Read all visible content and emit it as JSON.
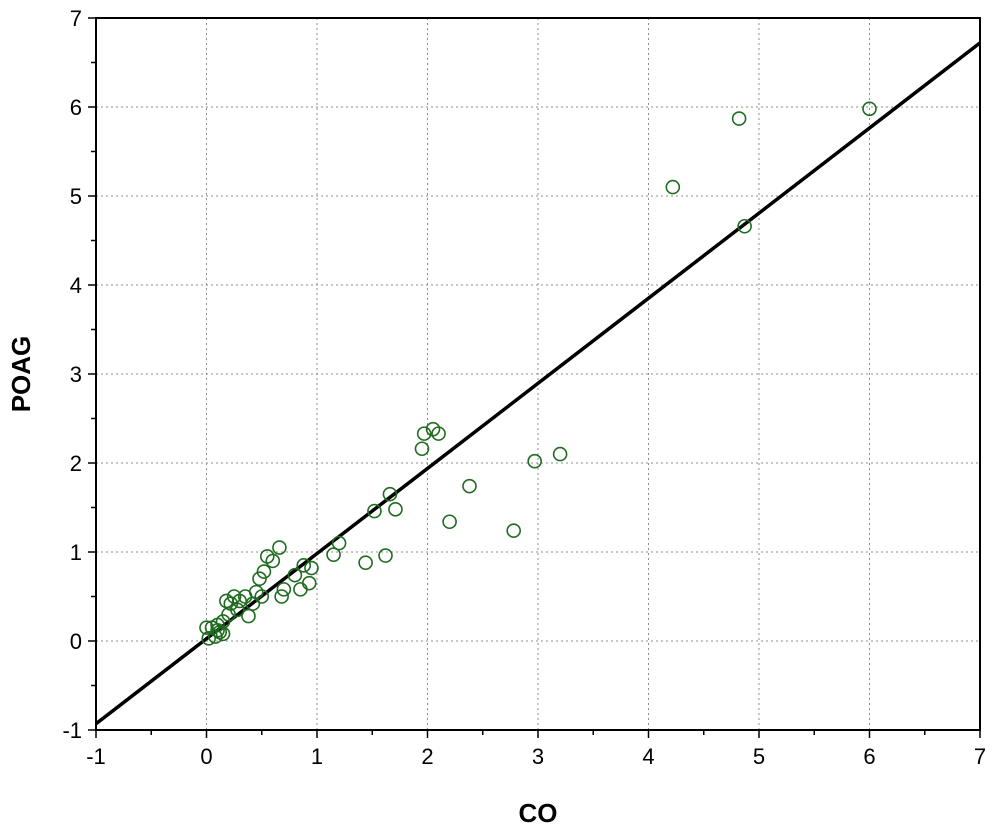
{
  "chart_data": {
    "type": "scatter",
    "title": "",
    "xlabel": "CO",
    "ylabel": "POAG",
    "xlim": [
      -1,
      7
    ],
    "ylim": [
      -1,
      7
    ],
    "x_ticks": [
      "-1",
      "0",
      "1",
      "2",
      "3",
      "4",
      "5",
      "6",
      "7"
    ],
    "y_ticks": [
      "-1",
      "0",
      "1",
      "2",
      "3",
      "4",
      "5",
      "6",
      "7"
    ],
    "grid": true,
    "point_color": "#1f6b1f",
    "line_color": "#000000",
    "fit_line": {
      "x": [
        -1,
        7
      ],
      "y": [
        -0.93,
        6.72
      ]
    },
    "series": [
      {
        "points": [
          [
            6.0,
            5.98
          ],
          [
            4.82,
            5.87
          ],
          [
            4.22,
            5.1
          ],
          [
            4.87,
            4.66
          ],
          [
            3.2,
            2.1
          ],
          [
            2.97,
            2.02
          ],
          [
            2.78,
            1.24
          ],
          [
            2.38,
            1.74
          ],
          [
            2.2,
            1.34
          ],
          [
            2.05,
            2.38
          ],
          [
            2.1,
            2.33
          ],
          [
            1.97,
            2.33
          ],
          [
            1.95,
            2.16
          ],
          [
            1.66,
            1.65
          ],
          [
            1.71,
            1.48
          ],
          [
            1.52,
            1.46
          ],
          [
            1.62,
            0.96
          ],
          [
            1.44,
            0.88
          ],
          [
            1.2,
            1.1
          ],
          [
            1.15,
            0.97
          ],
          [
            0.95,
            0.82
          ],
          [
            0.88,
            0.85
          ],
          [
            0.93,
            0.65
          ],
          [
            0.85,
            0.58
          ],
          [
            0.8,
            0.74
          ],
          [
            0.7,
            0.58
          ],
          [
            0.68,
            0.5
          ],
          [
            0.66,
            1.05
          ],
          [
            0.6,
            0.9
          ],
          [
            0.55,
            0.95
          ],
          [
            0.52,
            0.78
          ],
          [
            0.48,
            0.7
          ],
          [
            0.5,
            0.5
          ],
          [
            0.42,
            0.42
          ],
          [
            0.38,
            0.28
          ],
          [
            0.35,
            0.5
          ],
          [
            0.3,
            0.45
          ],
          [
            0.25,
            0.5
          ],
          [
            0.22,
            0.42
          ],
          [
            0.2,
            0.3
          ],
          [
            0.18,
            0.45
          ],
          [
            0.15,
            0.22
          ],
          [
            0.12,
            0.1
          ],
          [
            0.1,
            0.18
          ],
          [
            0.08,
            0.05
          ],
          [
            0.05,
            0.15
          ],
          [
            0.02,
            0.03
          ],
          [
            0.0,
            0.15
          ],
          [
            0.1,
            0.12
          ],
          [
            0.15,
            0.08
          ],
          [
            0.28,
            0.35
          ],
          [
            0.45,
            0.55
          ]
        ]
      }
    ]
  }
}
